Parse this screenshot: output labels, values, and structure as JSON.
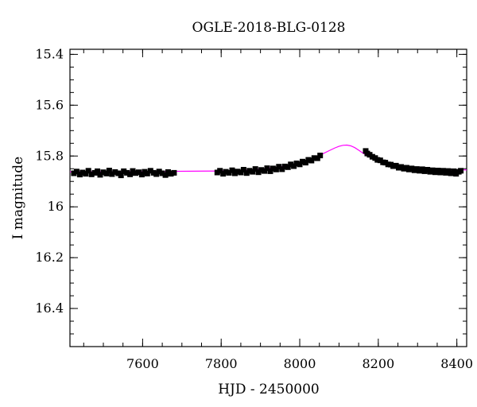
{
  "chart_data": {
    "type": "scatter",
    "title": "OGLE-2018-BLG-0128",
    "xlabel": "HJD - 2450000",
    "ylabel": "I magnitude",
    "xlim": [
      7415,
      8425
    ],
    "ylim": [
      16.55,
      15.38
    ],
    "y_axis_inverted": true,
    "grid": false,
    "x_ticks": [
      {
        "value": 7600,
        "label": "7600"
      },
      {
        "value": 7800,
        "label": "7800"
      },
      {
        "value": 8000,
        "label": "8000"
      },
      {
        "value": 8200,
        "label": "8200"
      },
      {
        "value": 8400,
        "label": "8400"
      }
    ],
    "y_ticks": [
      {
        "value": 15.4,
        "label": "15.4"
      },
      {
        "value": 15.6,
        "label": "15.6"
      },
      {
        "value": 15.8,
        "label": "15.8"
      },
      {
        "value": 16.0,
        "label": "16"
      },
      {
        "value": 16.2,
        "label": "16.2"
      },
      {
        "value": 16.4,
        "label": "16.4"
      }
    ],
    "x_minor_step": 50,
    "y_minor_step": 0.05,
    "series": [
      {
        "kind": "points",
        "color": "#000000",
        "marker": "square",
        "points": [
          [
            7425,
            15.868
          ],
          [
            7432,
            15.861
          ],
          [
            7440,
            15.873
          ],
          [
            7447,
            15.865
          ],
          [
            7455,
            15.87
          ],
          [
            7462,
            15.858
          ],
          [
            7470,
            15.872
          ],
          [
            7478,
            15.866
          ],
          [
            7485,
            15.86
          ],
          [
            7492,
            15.874
          ],
          [
            7500,
            15.864
          ],
          [
            7508,
            15.869
          ],
          [
            7515,
            15.857
          ],
          [
            7522,
            15.871
          ],
          [
            7530,
            15.863
          ],
          [
            7538,
            15.868
          ],
          [
            7545,
            15.876
          ],
          [
            7552,
            15.86
          ],
          [
            7560,
            15.866
          ],
          [
            7568,
            15.872
          ],
          [
            7575,
            15.859
          ],
          [
            7582,
            15.867
          ],
          [
            7590,
            15.864
          ],
          [
            7598,
            15.873
          ],
          [
            7605,
            15.862
          ],
          [
            7612,
            15.869
          ],
          [
            7620,
            15.858
          ],
          [
            7628,
            15.866
          ],
          [
            7635,
            15.871
          ],
          [
            7642,
            15.861
          ],
          [
            7650,
            15.868
          ],
          [
            7658,
            15.875
          ],
          [
            7665,
            15.863
          ],
          [
            7672,
            15.87
          ],
          [
            7680,
            15.866
          ],
          [
            7790,
            15.865
          ],
          [
            7797,
            15.858
          ],
          [
            7805,
            15.87
          ],
          [
            7812,
            15.862
          ],
          [
            7820,
            15.866
          ],
          [
            7828,
            15.856
          ],
          [
            7835,
            15.868
          ],
          [
            7842,
            15.861
          ],
          [
            7850,
            15.865
          ],
          [
            7857,
            15.854
          ],
          [
            7865,
            15.867
          ],
          [
            7872,
            15.858
          ],
          [
            7880,
            15.862
          ],
          [
            7887,
            15.851
          ],
          [
            7895,
            15.864
          ],
          [
            7902,
            15.855
          ],
          [
            7910,
            15.859
          ],
          [
            7917,
            15.848
          ],
          [
            7925,
            15.86
          ],
          [
            7932,
            15.849
          ],
          [
            7940,
            15.853
          ],
          [
            7947,
            15.842
          ],
          [
            7955,
            15.852
          ],
          [
            7962,
            15.841
          ],
          [
            7970,
            15.844
          ],
          [
            7977,
            15.833
          ],
          [
            7985,
            15.84
          ],
          [
            7992,
            15.829
          ],
          [
            8000,
            15.833
          ],
          [
            8007,
            15.822
          ],
          [
            8015,
            15.826
          ],
          [
            8022,
            15.815
          ],
          [
            8030,
            15.818
          ],
          [
            8037,
            15.808
          ],
          [
            8045,
            15.809
          ],
          [
            8052,
            15.798
          ],
          [
            8168,
            15.78
          ],
          [
            8172,
            15.79
          ],
          [
            8178,
            15.795
          ],
          [
            8185,
            15.803
          ],
          [
            8192,
            15.808
          ],
          [
            8198,
            15.815
          ],
          [
            8205,
            15.817
          ],
          [
            8212,
            15.825
          ],
          [
            8218,
            15.826
          ],
          [
            8225,
            15.833
          ],
          [
            8232,
            15.834
          ],
          [
            8238,
            15.84
          ],
          [
            8245,
            15.838
          ],
          [
            8252,
            15.846
          ],
          [
            8258,
            15.843
          ],
          [
            8265,
            15.85
          ],
          [
            8272,
            15.846
          ],
          [
            8278,
            15.853
          ],
          [
            8285,
            15.849
          ],
          [
            8292,
            15.856
          ],
          [
            8298,
            15.851
          ],
          [
            8305,
            15.858
          ],
          [
            8312,
            15.852
          ],
          [
            8318,
            15.86
          ],
          [
            8325,
            15.854
          ],
          [
            8332,
            15.862
          ],
          [
            8338,
            15.856
          ],
          [
            8345,
            15.864
          ],
          [
            8352,
            15.857
          ],
          [
            8358,
            15.865
          ],
          [
            8365,
            15.858
          ],
          [
            8372,
            15.866
          ],
          [
            8378,
            15.859
          ],
          [
            8385,
            15.868
          ],
          [
            8392,
            15.86
          ],
          [
            8398,
            15.87
          ],
          [
            8405,
            15.862
          ],
          [
            8410,
            15.858
          ]
        ]
      },
      {
        "kind": "line",
        "color": "#ff00ff",
        "points": [
          [
            7415,
            15.862
          ],
          [
            7600,
            15.861
          ],
          [
            7800,
            15.859
          ],
          [
            7850,
            15.857
          ],
          [
            7900,
            15.852
          ],
          [
            7950,
            15.843
          ],
          [
            8000,
            15.828
          ],
          [
            8025,
            15.815
          ],
          [
            8050,
            15.798
          ],
          [
            8075,
            15.779
          ],
          [
            8090,
            15.768
          ],
          [
            8100,
            15.762
          ],
          [
            8110,
            15.758
          ],
          [
            8120,
            15.757
          ],
          [
            8130,
            15.76
          ],
          [
            8140,
            15.767
          ],
          [
            8150,
            15.777
          ],
          [
            8160,
            15.788
          ],
          [
            8175,
            15.801
          ],
          [
            8200,
            15.817
          ],
          [
            8250,
            15.836
          ],
          [
            8300,
            15.846
          ],
          [
            8350,
            15.851
          ],
          [
            8425,
            15.855
          ]
        ]
      }
    ]
  }
}
